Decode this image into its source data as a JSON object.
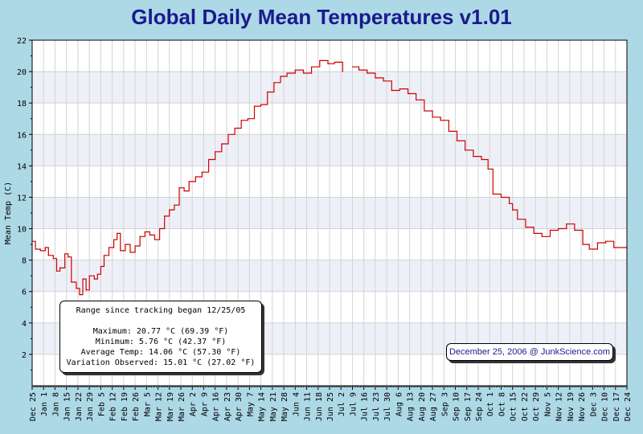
{
  "page": {
    "title": "Global Daily Mean Temperatures v1.01"
  },
  "stats": {
    "range_label": "Range since tracking began 12/25/05",
    "maximum": "Maximum: 20.77 °C (69.39 °F)",
    "minimum": "Minimum: 5.76 °C (42.37 °F)",
    "average": "Average Temp: 14.06 °C (57.30 °F)",
    "variation": "Variation Observed: 15.01 °C (27.02 °F)"
  },
  "credit": "December 25, 2006 @ JunkScience.com",
  "colors": {
    "background": "#add8e6",
    "title": "#1a1a8c",
    "series": "#cc0000",
    "band": "#eef0f8"
  },
  "chart_data": {
    "type": "line",
    "title": "Global Daily Mean Temperatures v1.01",
    "xlabel": "",
    "ylabel": "Mean Temp (C)",
    "ylim": [
      0,
      22
    ],
    "yticks": [
      2,
      4,
      6,
      8,
      10,
      12,
      14,
      16,
      18,
      20,
      22
    ],
    "grid": true,
    "xticks": [
      "Dec 25",
      "Jan 1",
      "Jan 8",
      "Jan 15",
      "Jan 22",
      "Jan 29",
      "Feb 5",
      "Feb 12",
      "Feb 19",
      "Feb 26",
      "Mar 5",
      "Mar 12",
      "Mar 19",
      "Mar 26",
      "Apr 2",
      "Apr 9",
      "Apr 16",
      "Apr 23",
      "Apr 30",
      "May 7",
      "May 14",
      "May 21",
      "May 28",
      "Jun 4",
      "Jun 11",
      "Jun 18",
      "Jun 25",
      "Jul 2",
      "Jul 9",
      "Jul 16",
      "Jul 23",
      "Jul 30",
      "Aug 6",
      "Aug 13",
      "Aug 20",
      "Aug 27",
      "Sep 3",
      "Sep 10",
      "Sep 17",
      "Sep 24",
      "Oct 1",
      "Oct 8",
      "Oct 15",
      "Oct 22",
      "Oct 29",
      "Nov 5",
      "Nov 12",
      "Nov 19",
      "Nov 26",
      "Dec 3",
      "Dec 10",
      "Dec 17",
      "Dec 24"
    ],
    "xrange": [
      "2005-12-25",
      "2006-12-24"
    ],
    "series": [
      {
        "values": [
          [
            "2005-12-25",
            9.2
          ],
          [
            "2005-12-27",
            8.7
          ],
          [
            "2005-12-30",
            8.6
          ],
          [
            "2006-01-02",
            8.8
          ],
          [
            "2006-01-04",
            8.3
          ],
          [
            "2006-01-07",
            8.1
          ],
          [
            "2006-01-09",
            7.3
          ],
          [
            "2006-01-11",
            7.5
          ],
          [
            "2006-01-14",
            8.4
          ],
          [
            "2006-01-16",
            8.2
          ],
          [
            "2006-01-18",
            6.6
          ],
          [
            "2006-01-21",
            6.2
          ],
          [
            "2006-01-23",
            5.8
          ],
          [
            "2006-01-25",
            6.8
          ],
          [
            "2006-01-27",
            6.1
          ],
          [
            "2006-01-29",
            7.0
          ],
          [
            "2006-02-01",
            6.8
          ],
          [
            "2006-02-03",
            7.1
          ],
          [
            "2006-02-05",
            7.6
          ],
          [
            "2006-02-07",
            8.3
          ],
          [
            "2006-02-10",
            8.8
          ],
          [
            "2006-02-13",
            9.3
          ],
          [
            "2006-02-15",
            9.7
          ],
          [
            "2006-02-17",
            8.6
          ],
          [
            "2006-02-20",
            9.0
          ],
          [
            "2006-02-23",
            8.5
          ],
          [
            "2006-02-26",
            8.9
          ],
          [
            "2006-03-01",
            9.5
          ],
          [
            "2006-03-04",
            9.8
          ],
          [
            "2006-03-07",
            9.6
          ],
          [
            "2006-03-10",
            9.3
          ],
          [
            "2006-03-13",
            10.0
          ],
          [
            "2006-03-16",
            10.8
          ],
          [
            "2006-03-19",
            11.2
          ],
          [
            "2006-03-22",
            11.5
          ],
          [
            "2006-03-25",
            12.6
          ],
          [
            "2006-03-28",
            12.4
          ],
          [
            "2006-03-31",
            13.0
          ],
          [
            "2006-04-04",
            13.3
          ],
          [
            "2006-04-08",
            13.6
          ],
          [
            "2006-04-12",
            14.4
          ],
          [
            "2006-04-16",
            14.9
          ],
          [
            "2006-04-20",
            15.4
          ],
          [
            "2006-04-24",
            16.0
          ],
          [
            "2006-04-28",
            16.4
          ],
          [
            "2006-05-02",
            16.9
          ],
          [
            "2006-05-06",
            17.0
          ],
          [
            "2006-05-10",
            17.8
          ],
          [
            "2006-05-14",
            17.9
          ],
          [
            "2006-05-18",
            18.7
          ],
          [
            "2006-05-22",
            19.3
          ],
          [
            "2006-05-26",
            19.7
          ],
          [
            "2006-05-30",
            19.9
          ],
          [
            "2006-06-04",
            20.1
          ],
          [
            "2006-06-09",
            19.9
          ],
          [
            "2006-06-14",
            20.3
          ],
          [
            "2006-06-19",
            20.7
          ],
          [
            "2006-06-24",
            20.5
          ],
          [
            "2006-06-28",
            20.6
          ],
          [
            "2006-07-03",
            20.0
          ]
        ]
      },
      {
        "values": [
          [
            "2006-07-09",
            20.3
          ],
          [
            "2006-07-13",
            20.1
          ],
          [
            "2006-07-18",
            19.9
          ],
          [
            "2006-07-23",
            19.6
          ],
          [
            "2006-07-28",
            19.4
          ],
          [
            "2006-08-02",
            18.8
          ],
          [
            "2006-08-07",
            18.9
          ],
          [
            "2006-08-12",
            18.6
          ],
          [
            "2006-08-17",
            18.2
          ],
          [
            "2006-08-22",
            17.5
          ],
          [
            "2006-08-27",
            17.1
          ],
          [
            "2006-09-01",
            16.9
          ],
          [
            "2006-09-06",
            16.2
          ],
          [
            "2006-09-11",
            15.6
          ],
          [
            "2006-09-16",
            15.0
          ],
          [
            "2006-09-21",
            14.6
          ],
          [
            "2006-09-26",
            14.4
          ],
          [
            "2006-09-30",
            13.8
          ],
          [
            "2006-10-03",
            12.2
          ],
          [
            "2006-10-08",
            12.0
          ],
          [
            "2006-10-13",
            11.6
          ],
          [
            "2006-10-15",
            11.2
          ],
          [
            "2006-10-18",
            10.6
          ],
          [
            "2006-10-23",
            10.1
          ],
          [
            "2006-10-28",
            9.7
          ],
          [
            "2006-11-02",
            9.5
          ],
          [
            "2006-11-07",
            9.9
          ],
          [
            "2006-11-12",
            10.0
          ],
          [
            "2006-11-17",
            10.3
          ],
          [
            "2006-11-22",
            9.9
          ],
          [
            "2006-11-27",
            9.0
          ],
          [
            "2006-12-01",
            8.7
          ],
          [
            "2006-12-06",
            9.1
          ],
          [
            "2006-12-11",
            9.2
          ],
          [
            "2006-12-16",
            8.8
          ],
          [
            "2006-12-24",
            8.7
          ]
        ]
      }
    ]
  }
}
